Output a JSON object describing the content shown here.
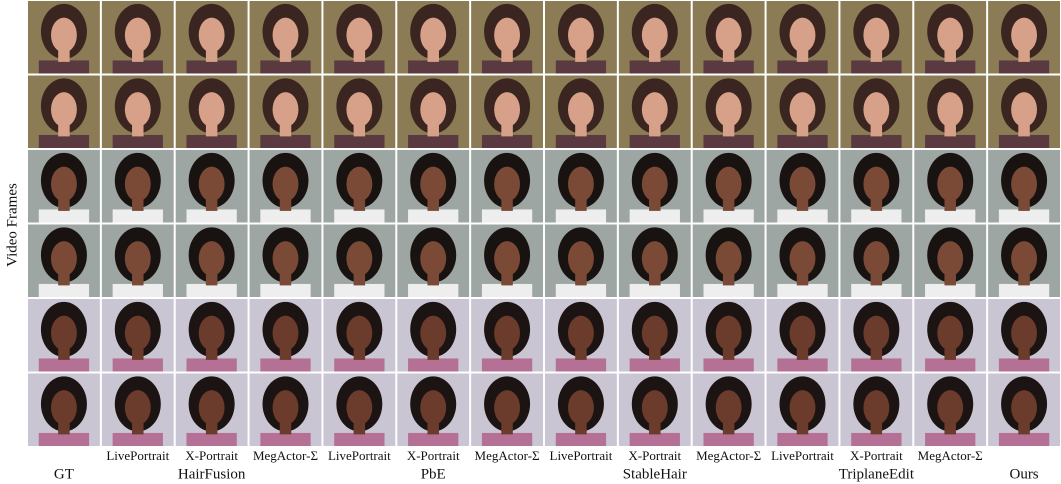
{
  "y_label": "Video Frames",
  "gt_label": "GT",
  "groups": [
    {
      "name": "HairFusion",
      "methods": [
        "LivePortrait",
        "X-Portrait",
        "MegActor-Σ"
      ]
    },
    {
      "name": "PbE",
      "methods": [
        "LivePortrait",
        "X-Portrait",
        "MegActor-Σ"
      ]
    },
    {
      "name": "StableHair",
      "methods": [
        "LivePortrait",
        "X-Portrait",
        "MegActor-Σ"
      ]
    },
    {
      "name": "TriplaneEdit",
      "methods": [
        "LivePortrait",
        "X-Portrait",
        "MegActor-Σ"
      ]
    }
  ],
  "ours_label": "Ours"
}
